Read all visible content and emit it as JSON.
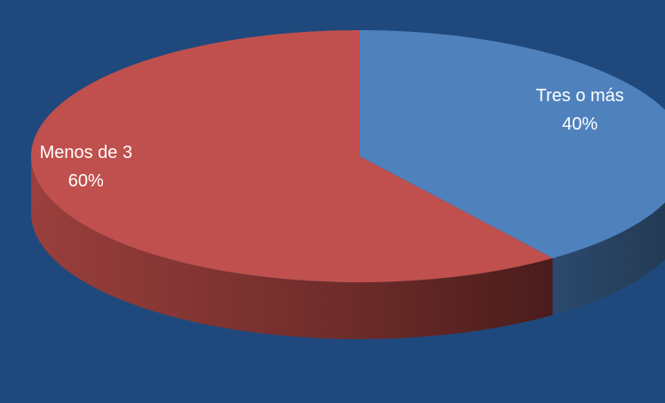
{
  "chart_data": {
    "type": "pie",
    "three_d": true,
    "title": "",
    "background_color": "#1f497d",
    "slices": [
      {
        "label": "Tres o más",
        "value": 40,
        "value_label": "40%",
        "color": "#4f81bd"
      },
      {
        "label": "Menos de 3",
        "value": 60,
        "value_label": "60%",
        "color": "#c0504d"
      }
    ],
    "legend": "none"
  }
}
